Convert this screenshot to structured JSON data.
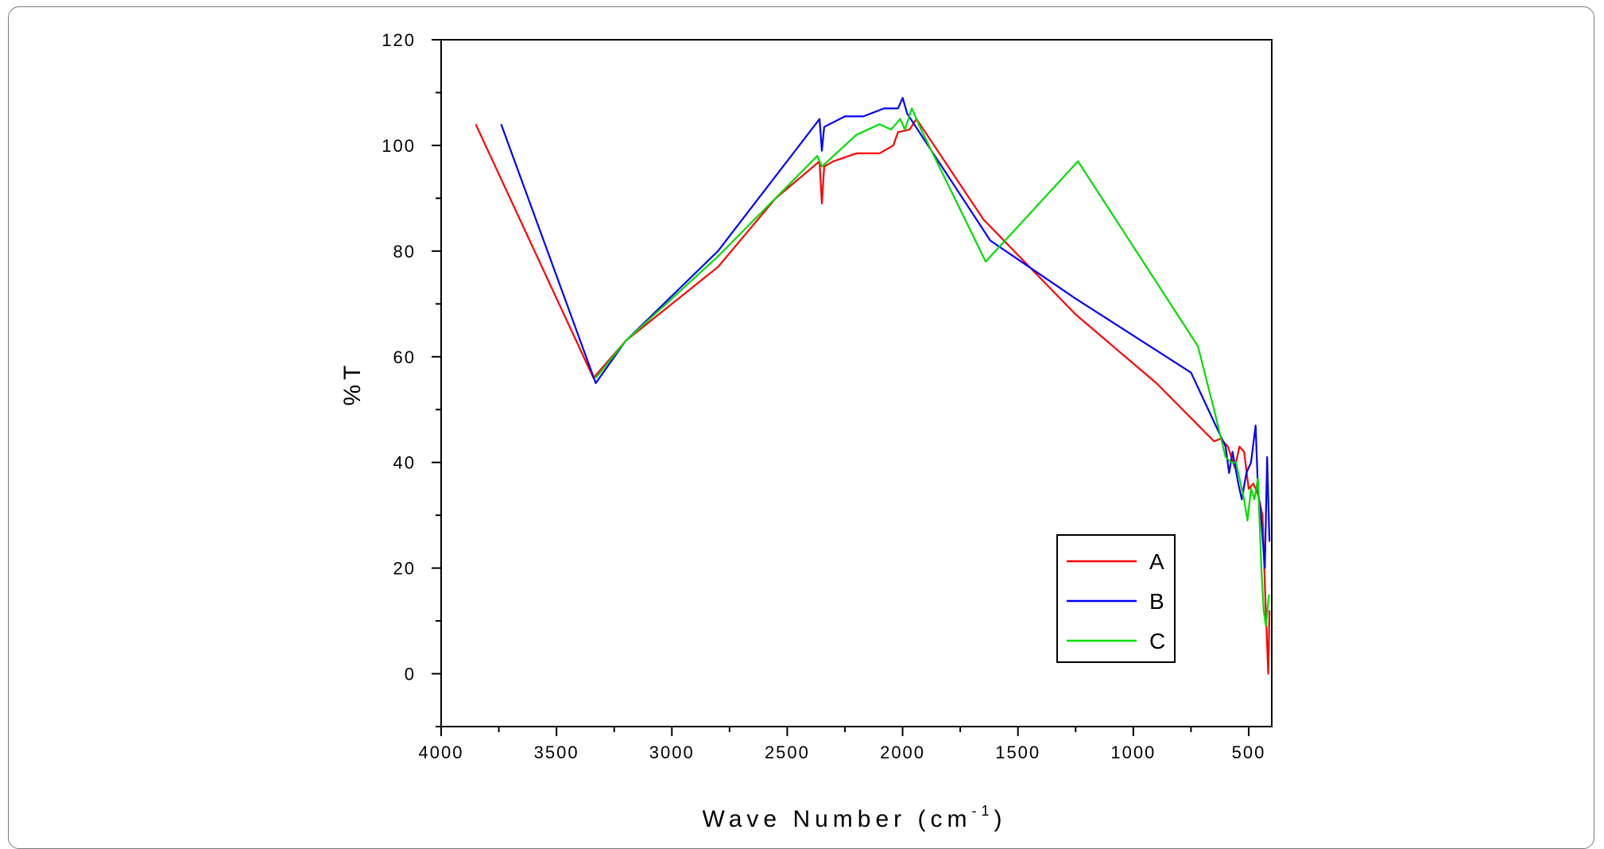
{
  "chart_data": {
    "type": "line",
    "title": "",
    "xlabel": "Wave Number (cm",
    "xlabel_sup": "-1",
    "xlabel_close": ")",
    "ylabel": "%T",
    "xlim": [
      4000,
      400
    ],
    "ylim": [
      -10,
      120
    ],
    "x_ticks": [
      4000,
      3500,
      3000,
      2500,
      2000,
      1500,
      1000,
      500
    ],
    "x_tick_labels": [
      "4000",
      "3500",
      "3000",
      "2500",
      "2000",
      "1500",
      "1000",
      "500"
    ],
    "y_ticks": [
      0,
      20,
      40,
      60,
      80,
      100,
      120
    ],
    "y_tick_labels": [
      "0",
      "20",
      "40",
      "60",
      "80",
      "100",
      "120"
    ],
    "grid": false,
    "legend": "lower-right",
    "series": [
      {
        "name": "A",
        "color": "#ff0000",
        "points": [
          [
            3850,
            104
          ],
          [
            3340,
            56
          ],
          [
            3200,
            63
          ],
          [
            2800,
            77
          ],
          [
            2550,
            90
          ],
          [
            2360,
            97
          ],
          [
            2350,
            89
          ],
          [
            2340,
            96
          ],
          [
            2300,
            97
          ],
          [
            2200,
            98.5
          ],
          [
            2100,
            98.5
          ],
          [
            2040,
            100
          ],
          [
            2020,
            102.5
          ],
          [
            1970,
            103
          ],
          [
            1940,
            105
          ],
          [
            1650,
            86
          ],
          [
            1250,
            68
          ],
          [
            900,
            55
          ],
          [
            650,
            44
          ],
          [
            620,
            44.5
          ],
          [
            590,
            43
          ],
          [
            560,
            39
          ],
          [
            540,
            43
          ],
          [
            520,
            42
          ],
          [
            500,
            35
          ],
          [
            480,
            36
          ],
          [
            460,
            34
          ],
          [
            440,
            30
          ],
          [
            425,
            11
          ],
          [
            415,
            0
          ],
          [
            410,
            12
          ]
        ]
      },
      {
        "name": "B",
        "color": "#0000ff",
        "points": [
          [
            3740,
            104
          ],
          [
            3330,
            55
          ],
          [
            3200,
            63
          ],
          [
            2800,
            80
          ],
          [
            2360,
            105
          ],
          [
            2350,
            99
          ],
          [
            2340,
            103.5
          ],
          [
            2250,
            105.5
          ],
          [
            2170,
            105.5
          ],
          [
            2080,
            107
          ],
          [
            2020,
            107
          ],
          [
            2000,
            109
          ],
          [
            1980,
            106
          ],
          [
            1950,
            104
          ],
          [
            1620,
            82
          ],
          [
            1250,
            71
          ],
          [
            750,
            57
          ],
          [
            600,
            43
          ],
          [
            585,
            38
          ],
          [
            570,
            42
          ],
          [
            545,
            36
          ],
          [
            530,
            33
          ],
          [
            510,
            38
          ],
          [
            490,
            40
          ],
          [
            470,
            47
          ],
          [
            460,
            35
          ],
          [
            445,
            29
          ],
          [
            430,
            20
          ],
          [
            420,
            41
          ],
          [
            410,
            25
          ]
        ]
      },
      {
        "name": "C",
        "color": "#00dd00",
        "points": [
          [
            3330,
            56
          ],
          [
            3200,
            63
          ],
          [
            2800,
            79
          ],
          [
            2370,
            98
          ],
          [
            2350,
            96
          ],
          [
            2300,
            98
          ],
          [
            2200,
            102
          ],
          [
            2100,
            104
          ],
          [
            2050,
            103
          ],
          [
            2010,
            105
          ],
          [
            1990,
            103
          ],
          [
            1960,
            107
          ],
          [
            1920,
            103
          ],
          [
            1640,
            78
          ],
          [
            1240,
            97
          ],
          [
            720,
            62
          ],
          [
            650,
            50
          ],
          [
            600,
            41
          ],
          [
            575,
            40
          ],
          [
            555,
            40
          ],
          [
            535,
            36
          ],
          [
            520,
            33
          ],
          [
            505,
            29
          ],
          [
            490,
            35
          ],
          [
            475,
            33
          ],
          [
            460,
            37
          ],
          [
            445,
            20
          ],
          [
            435,
            12
          ],
          [
            425,
            9
          ],
          [
            412,
            15
          ]
        ]
      }
    ]
  }
}
